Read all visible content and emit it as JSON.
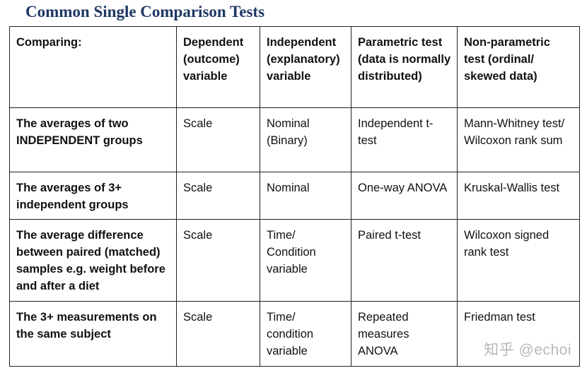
{
  "document": {
    "title": "Common Single Comparison Tests",
    "watermark": "知乎 @echoi"
  },
  "table": {
    "headers": [
      "Comparing:",
      "Dependent (outcome) variable",
      "Independent (explanatory) variable",
      "Parametric test (data is normally distributed)",
      "Non-parametric test (ordinal/ skewed data)"
    ],
    "rows": [
      {
        "comparing": "The averages of two INDEPENDENT groups",
        "dependent": "Scale",
        "independent": "Nominal (Binary)",
        "parametric": "Independent t-test",
        "nonparametric": "Mann-Whitney test/ Wilcoxon rank sum"
      },
      {
        "comparing": "The averages of 3+ independent groups",
        "dependent": "Scale",
        "independent": "Nominal",
        "parametric": "One-way ANOVA",
        "nonparametric": "Kruskal-Wallis test"
      },
      {
        "comparing": "The average difference between paired (matched) samples e.g. weight before and after a diet",
        "dependent": "Scale",
        "independent": "Time/ Condition variable",
        "parametric": "Paired t-test",
        "nonparametric": "Wilcoxon signed rank test"
      },
      {
        "comparing": "The 3+ measurements on the same subject",
        "dependent": "Scale",
        "independent": "Time/ condition variable",
        "parametric": "Repeated measures ANOVA",
        "nonparametric": "Friedman test"
      }
    ]
  }
}
